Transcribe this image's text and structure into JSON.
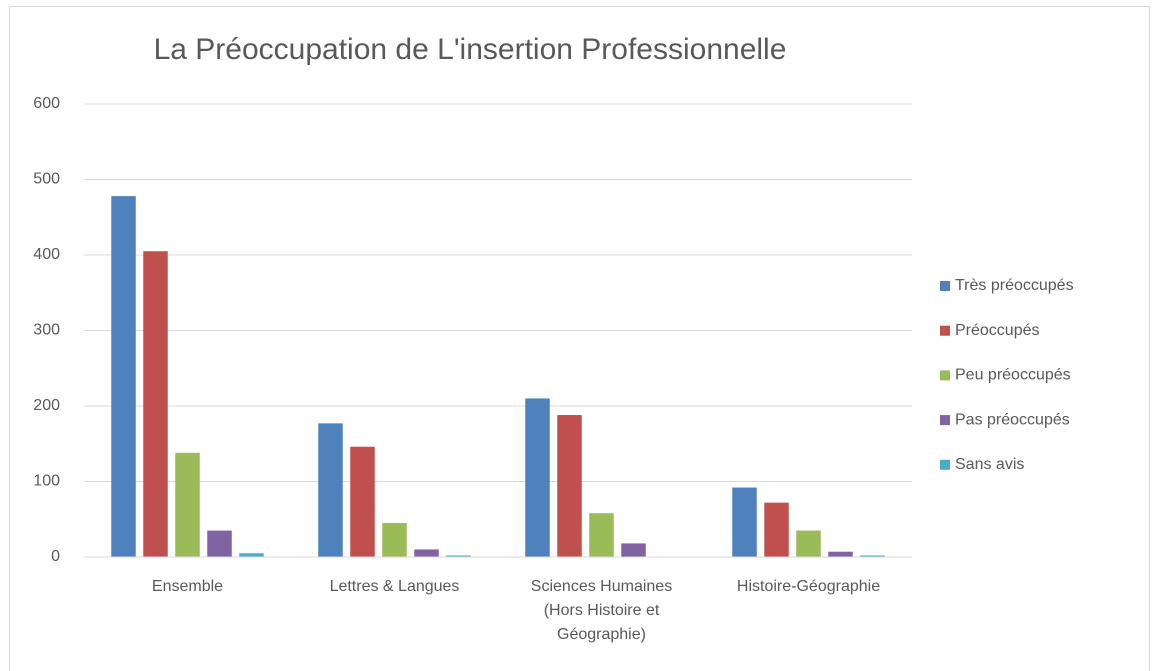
{
  "chart_data": {
    "type": "bar",
    "title": "La Préoccupation de L'insertion Professionnelle",
    "categories": [
      "Ensemble",
      "Lettres & Langues",
      "Sciences Humaines (Hors Histoire et Géographie)",
      "Histoire-Géographie"
    ],
    "series": [
      {
        "name": "Très préoccupés",
        "color": "#4f81bd",
        "values": [
          478,
          177,
          210,
          92
        ]
      },
      {
        "name": "Préoccupés",
        "color": "#c0504d",
        "values": [
          405,
          146,
          188,
          72
        ]
      },
      {
        "name": "Peu préoccupés",
        "color": "#9bbb59",
        "values": [
          138,
          45,
          58,
          35
        ]
      },
      {
        "name": "Pas préoccupés",
        "color": "#8064a2",
        "values": [
          35,
          10,
          18,
          7
        ]
      },
      {
        "name": "Sans avis",
        "color": "#4bacc6",
        "values": [
          5,
          2,
          0,
          2
        ]
      }
    ],
    "ylim": [
      0,
      600
    ],
    "yticks": [
      0,
      100,
      200,
      300,
      400,
      500,
      600
    ],
    "grid": true,
    "legend": "right"
  }
}
